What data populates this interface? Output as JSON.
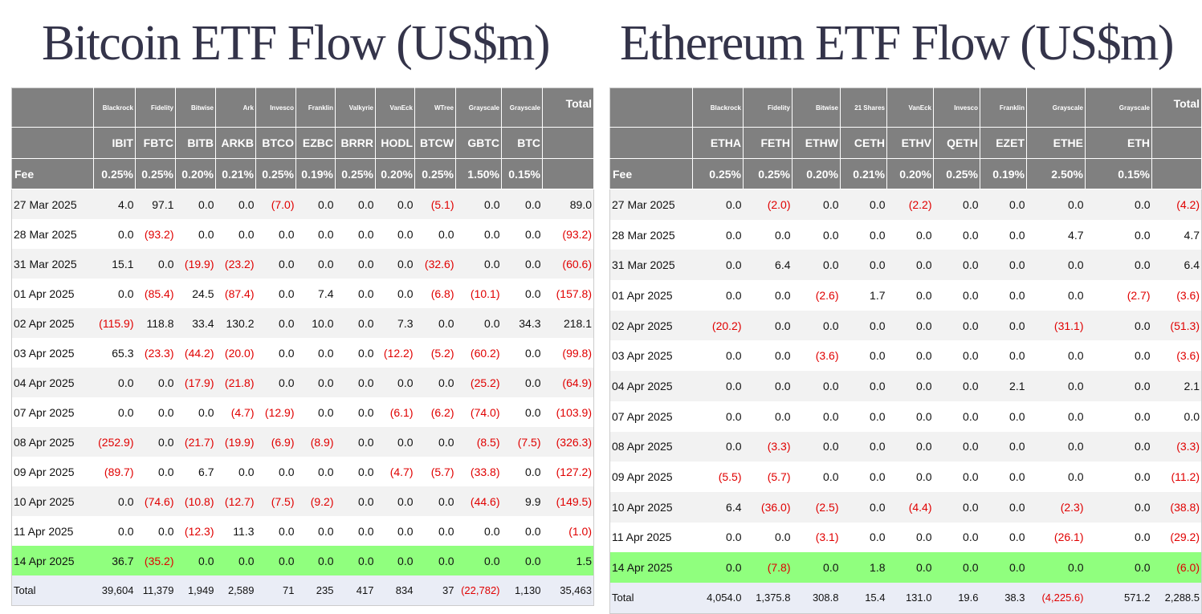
{
  "bitcoin": {
    "title": "Bitcoin ETF Flow (US$m)",
    "issuers": [
      "Blackrock",
      "Fidelity",
      "Bitwise",
      "Ark",
      "Invesco",
      "Franklin",
      "Valkyrie",
      "VanEck",
      "WTree",
      "Grayscale",
      "Grayscale"
    ],
    "total_label": "Total",
    "tickers": [
      "IBIT",
      "FBTC",
      "BITB",
      "ARKB",
      "BTCO",
      "EZBC",
      "BRRR",
      "HODL",
      "BTCW",
      "GBTC",
      "BTC"
    ],
    "fee_label": "Fee",
    "fees": [
      "0.25%",
      "0.25%",
      "0.20%",
      "0.21%",
      "0.25%",
      "0.19%",
      "0.25%",
      "0.20%",
      "0.25%",
      "1.50%",
      "0.15%"
    ],
    "rows": [
      {
        "date": "27 Mar 2025",
        "values": [
          "4.0",
          "97.1",
          "0.0",
          "0.0",
          "(7.0)",
          "0.0",
          "0.0",
          "0.0",
          "(5.1)",
          "0.0",
          "0.0",
          "89.0"
        ]
      },
      {
        "date": "28 Mar 2025",
        "values": [
          "0.0",
          "(93.2)",
          "0.0",
          "0.0",
          "0.0",
          "0.0",
          "0.0",
          "0.0",
          "0.0",
          "0.0",
          "0.0",
          "(93.2)"
        ]
      },
      {
        "date": "31 Mar 2025",
        "values": [
          "15.1",
          "0.0",
          "(19.9)",
          "(23.2)",
          "0.0",
          "0.0",
          "0.0",
          "0.0",
          "(32.6)",
          "0.0",
          "0.0",
          "(60.6)"
        ]
      },
      {
        "date": "01 Apr 2025",
        "values": [
          "0.0",
          "(85.4)",
          "24.5",
          "(87.4)",
          "0.0",
          "7.4",
          "0.0",
          "0.0",
          "(6.8)",
          "(10.1)",
          "0.0",
          "(157.8)"
        ]
      },
      {
        "date": "02 Apr 2025",
        "values": [
          "(115.9)",
          "118.8",
          "33.4",
          "130.2",
          "0.0",
          "10.0",
          "0.0",
          "7.3",
          "0.0",
          "0.0",
          "34.3",
          "218.1"
        ]
      },
      {
        "date": "03 Apr 2025",
        "values": [
          "65.3",
          "(23.3)",
          "(44.2)",
          "(20.0)",
          "0.0",
          "0.0",
          "0.0",
          "(12.2)",
          "(5.2)",
          "(60.2)",
          "0.0",
          "(99.8)"
        ]
      },
      {
        "date": "04 Apr 2025",
        "values": [
          "0.0",
          "0.0",
          "(17.9)",
          "(21.8)",
          "0.0",
          "0.0",
          "0.0",
          "0.0",
          "0.0",
          "(25.2)",
          "0.0",
          "(64.9)"
        ]
      },
      {
        "date": "07 Apr 2025",
        "values": [
          "0.0",
          "0.0",
          "0.0",
          "(4.7)",
          "(12.9)",
          "0.0",
          "0.0",
          "(6.1)",
          "(6.2)",
          "(74.0)",
          "0.0",
          "(103.9)"
        ]
      },
      {
        "date": "08 Apr 2025",
        "values": [
          "(252.9)",
          "0.0",
          "(21.7)",
          "(19.9)",
          "(6.9)",
          "(8.9)",
          "0.0",
          "0.0",
          "0.0",
          "(8.5)",
          "(7.5)",
          "(326.3)"
        ]
      },
      {
        "date": "09 Apr 2025",
        "values": [
          "(89.7)",
          "0.0",
          "6.7",
          "0.0",
          "0.0",
          "0.0",
          "0.0",
          "(4.7)",
          "(5.7)",
          "(33.8)",
          "0.0",
          "(127.2)"
        ]
      },
      {
        "date": "10 Apr 2025",
        "values": [
          "0.0",
          "(74.6)",
          "(10.8)",
          "(12.7)",
          "(7.5)",
          "(9.2)",
          "0.0",
          "0.0",
          "0.0",
          "(44.6)",
          "9.9",
          "(149.5)"
        ]
      },
      {
        "date": "11 Apr 2025",
        "values": [
          "0.0",
          "0.0",
          "(12.3)",
          "11.3",
          "0.0",
          "0.0",
          "0.0",
          "0.0",
          "0.0",
          "0.0",
          "0.0",
          "(1.0)"
        ]
      },
      {
        "date": "14 Apr 2025",
        "values": [
          "36.7",
          "(35.2)",
          "0.0",
          "0.0",
          "0.0",
          "0.0",
          "0.0",
          "0.0",
          "0.0",
          "0.0",
          "0.0",
          "1.5"
        ]
      }
    ],
    "highlight_row": "14 Apr 2025",
    "total_row": {
      "label": "Total",
      "values": [
        "39,604",
        "11,379",
        "1,949",
        "2,589",
        "71",
        "235",
        "417",
        "834",
        "37",
        "(22,782)",
        "1,130",
        "35,463"
      ]
    }
  },
  "ethereum": {
    "title": "Ethereum ETF Flow (US$m)",
    "issuers": [
      "Blackrock",
      "Fidelity",
      "Bitwise",
      "21 Shares",
      "VanEck",
      "Invesco",
      "Franklin",
      "Grayscale",
      "Grayscale"
    ],
    "total_label": "Total",
    "tickers": [
      "ETHA",
      "FETH",
      "ETHW",
      "CETH",
      "ETHV",
      "QETH",
      "EZET",
      "ETHE",
      "ETH"
    ],
    "fee_label": "Fee",
    "fees": [
      "0.25%",
      "0.25%",
      "0.20%",
      "0.21%",
      "0.20%",
      "0.25%",
      "0.19%",
      "2.50%",
      "0.15%"
    ],
    "rows": [
      {
        "date": "27 Mar 2025",
        "values": [
          "0.0",
          "(2.0)",
          "0.0",
          "0.0",
          "(2.2)",
          "0.0",
          "0.0",
          "0.0",
          "0.0",
          "(4.2)"
        ]
      },
      {
        "date": "28 Mar 2025",
        "values": [
          "0.0",
          "0.0",
          "0.0",
          "0.0",
          "0.0",
          "0.0",
          "0.0",
          "4.7",
          "0.0",
          "4.7"
        ]
      },
      {
        "date": "31 Mar 2025",
        "values": [
          "0.0",
          "6.4",
          "0.0",
          "0.0",
          "0.0",
          "0.0",
          "0.0",
          "0.0",
          "0.0",
          "6.4"
        ]
      },
      {
        "date": "01 Apr 2025",
        "values": [
          "0.0",
          "0.0",
          "(2.6)",
          "1.7",
          "0.0",
          "0.0",
          "0.0",
          "0.0",
          "(2.7)",
          "(3.6)"
        ]
      },
      {
        "date": "02 Apr 2025",
        "values": [
          "(20.2)",
          "0.0",
          "0.0",
          "0.0",
          "0.0",
          "0.0",
          "0.0",
          "(31.1)",
          "0.0",
          "(51.3)"
        ]
      },
      {
        "date": "03 Apr 2025",
        "values": [
          "0.0",
          "0.0",
          "(3.6)",
          "0.0",
          "0.0",
          "0.0",
          "0.0",
          "0.0",
          "0.0",
          "(3.6)"
        ]
      },
      {
        "date": "04 Apr 2025",
        "values": [
          "0.0",
          "0.0",
          "0.0",
          "0.0",
          "0.0",
          "0.0",
          "2.1",
          "0.0",
          "0.0",
          "2.1"
        ]
      },
      {
        "date": "07 Apr 2025",
        "values": [
          "0.0",
          "0.0",
          "0.0",
          "0.0",
          "0.0",
          "0.0",
          "0.0",
          "0.0",
          "0.0",
          "0.0"
        ]
      },
      {
        "date": "08 Apr 2025",
        "values": [
          "0.0",
          "(3.3)",
          "0.0",
          "0.0",
          "0.0",
          "0.0",
          "0.0",
          "0.0",
          "0.0",
          "(3.3)"
        ]
      },
      {
        "date": "09 Apr 2025",
        "values": [
          "(5.5)",
          "(5.7)",
          "0.0",
          "0.0",
          "0.0",
          "0.0",
          "0.0",
          "0.0",
          "0.0",
          "(11.2)"
        ]
      },
      {
        "date": "10 Apr 2025",
        "values": [
          "6.4",
          "(36.0)",
          "(2.5)",
          "0.0",
          "(4.4)",
          "0.0",
          "0.0",
          "(2.3)",
          "0.0",
          "(38.8)"
        ]
      },
      {
        "date": "11 Apr 2025",
        "values": [
          "0.0",
          "0.0",
          "(3.1)",
          "0.0",
          "0.0",
          "0.0",
          "0.0",
          "(26.1)",
          "0.0",
          "(29.2)"
        ]
      },
      {
        "date": "14 Apr 2025",
        "values": [
          "0.0",
          "(7.8)",
          "0.0",
          "1.8",
          "0.0",
          "0.0",
          "0.0",
          "0.0",
          "0.0",
          "(6.0)"
        ]
      }
    ],
    "highlight_row": "14 Apr 2025",
    "total_row": {
      "label": "Total",
      "values": [
        "4,054.0",
        "1,375.8",
        "308.8",
        "15.4",
        "131.0",
        "19.6",
        "38.3",
        "(4,225.6)",
        "571.2",
        "2,288.5"
      ]
    }
  },
  "colors": {
    "header_bg": "#808080",
    "negative": "#e00000",
    "highlight": "#90ff7e",
    "stripe": "#f2f2f2",
    "total_bg": "#eaedf6",
    "title": "#34344a"
  }
}
